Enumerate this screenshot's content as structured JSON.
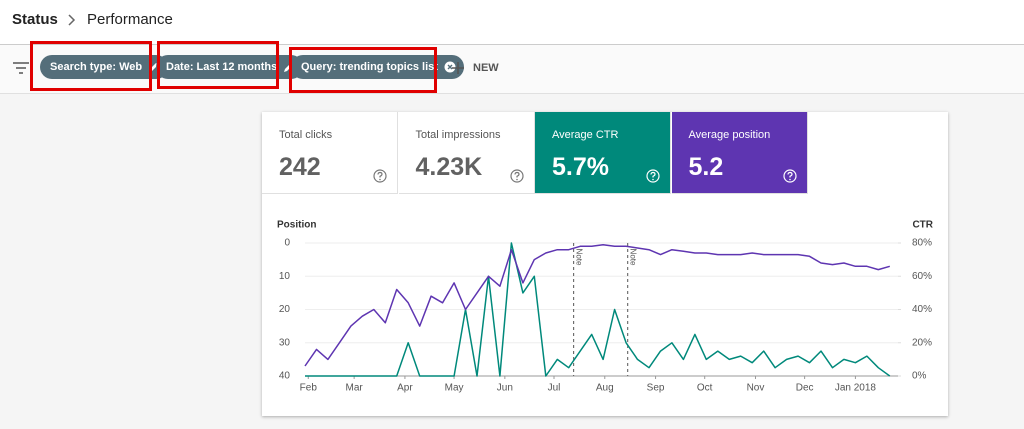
{
  "header": {
    "breadcrumb": "Status",
    "title": "Performance"
  },
  "filters": [
    {
      "label": "Search type: Web"
    },
    {
      "label": "Date: Last 12 months"
    },
    {
      "label": "Query: trending topics list"
    }
  ],
  "new_button": "NEW",
  "metrics": [
    {
      "label": "Total clicks",
      "value": "242"
    },
    {
      "label": "Total impressions",
      "value": "4.23K"
    },
    {
      "label": "Average CTR",
      "value": "5.7%"
    },
    {
      "label": "Average position",
      "value": "5.2"
    }
  ],
  "chart_data": {
    "type": "line",
    "y_label": "Position",
    "y2_label": "CTR",
    "xlim": [
      0,
      362
    ],
    "xticks": [
      {
        "value": 2,
        "label": "Feb"
      },
      {
        "value": 30,
        "label": "Mar"
      },
      {
        "value": 61,
        "label": "Apr"
      },
      {
        "value": 91,
        "label": "May"
      },
      {
        "value": 122,
        "label": "Jun"
      },
      {
        "value": 152,
        "label": "Jul"
      },
      {
        "value": 183,
        "label": "Aug"
      },
      {
        "value": 214,
        "label": "Sep"
      },
      {
        "value": 244,
        "label": "Oct"
      },
      {
        "value": 275,
        "label": "Nov"
      },
      {
        "value": 305,
        "label": "Dec"
      },
      {
        "value": 336,
        "label": "Jan 2018"
      }
    ],
    "ylim": [
      40,
      0
    ],
    "yticks": [
      0,
      10,
      20,
      30,
      40
    ],
    "y2lim": [
      0,
      80
    ],
    "y2ticks": [
      {
        "value": 0,
        "label": "0%"
      },
      {
        "value": 20,
        "label": "20%"
      },
      {
        "value": 40,
        "label": "40%"
      },
      {
        "value": 60,
        "label": "60%"
      },
      {
        "value": 80,
        "label": "80%"
      }
    ],
    "grid": true,
    "annotations": [
      {
        "label": "Note",
        "x": 164
      },
      {
        "label": "Note",
        "x": 197
      }
    ],
    "x": [
      0,
      7,
      14,
      21,
      28,
      35,
      42,
      49,
      56,
      63,
      70,
      77,
      84,
      91,
      98,
      105,
      112,
      119,
      126,
      133,
      140,
      147,
      154,
      161,
      168,
      175,
      182,
      189,
      196,
      203,
      210,
      217,
      224,
      231,
      238,
      245,
      252,
      259,
      266,
      273,
      280,
      287,
      294,
      301,
      308,
      315,
      322,
      329,
      336,
      343,
      350,
      357
    ],
    "series": [
      {
        "name": "Position",
        "color": "#5e35b1",
        "values": [
          37,
          32,
          35,
          30,
          25,
          22,
          20,
          24,
          14,
          18,
          25,
          16,
          18,
          12,
          20,
          15,
          10,
          13,
          2,
          12,
          5,
          3,
          2,
          2,
          1,
          1,
          0.5,
          1,
          1,
          1.5,
          2,
          3.5,
          2,
          2.5,
          3,
          3,
          3.5,
          3.5,
          3.5,
          3,
          3.5,
          3.5,
          3.5,
          3.5,
          4,
          6,
          6.5,
          6,
          7,
          7,
          8,
          7
        ]
      },
      {
        "name": "CTR",
        "color": "#00897b",
        "axis": "y2",
        "values": [
          0,
          0,
          0,
          0,
          0,
          0,
          0,
          0,
          0,
          20,
          0,
          0,
          0,
          0,
          40,
          0,
          60,
          0,
          80,
          50,
          60,
          0,
          10,
          5,
          15,
          25,
          10,
          40,
          20,
          10,
          5,
          15,
          20,
          10,
          25,
          10,
          15,
          10,
          12,
          8,
          15,
          5,
          10,
          12,
          8,
          15,
          5,
          10,
          8,
          12,
          5,
          0
        ]
      }
    ]
  }
}
